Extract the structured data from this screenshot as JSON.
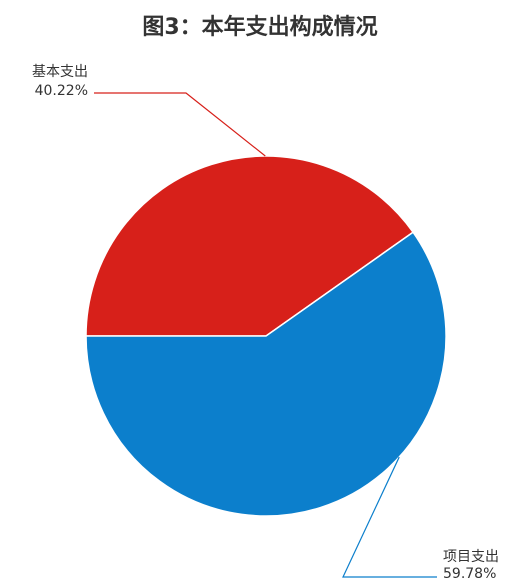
{
  "chart_data": {
    "type": "pie",
    "title": "图3：本年支出构成情况",
    "slices": [
      {
        "label": "基本支出",
        "value": 40.22,
        "value_label": "40.22%",
        "color": "#d7201a"
      },
      {
        "label": "项目支出",
        "value": 59.78,
        "value_label": "59.78%",
        "color": "#0c7fcc"
      }
    ]
  }
}
